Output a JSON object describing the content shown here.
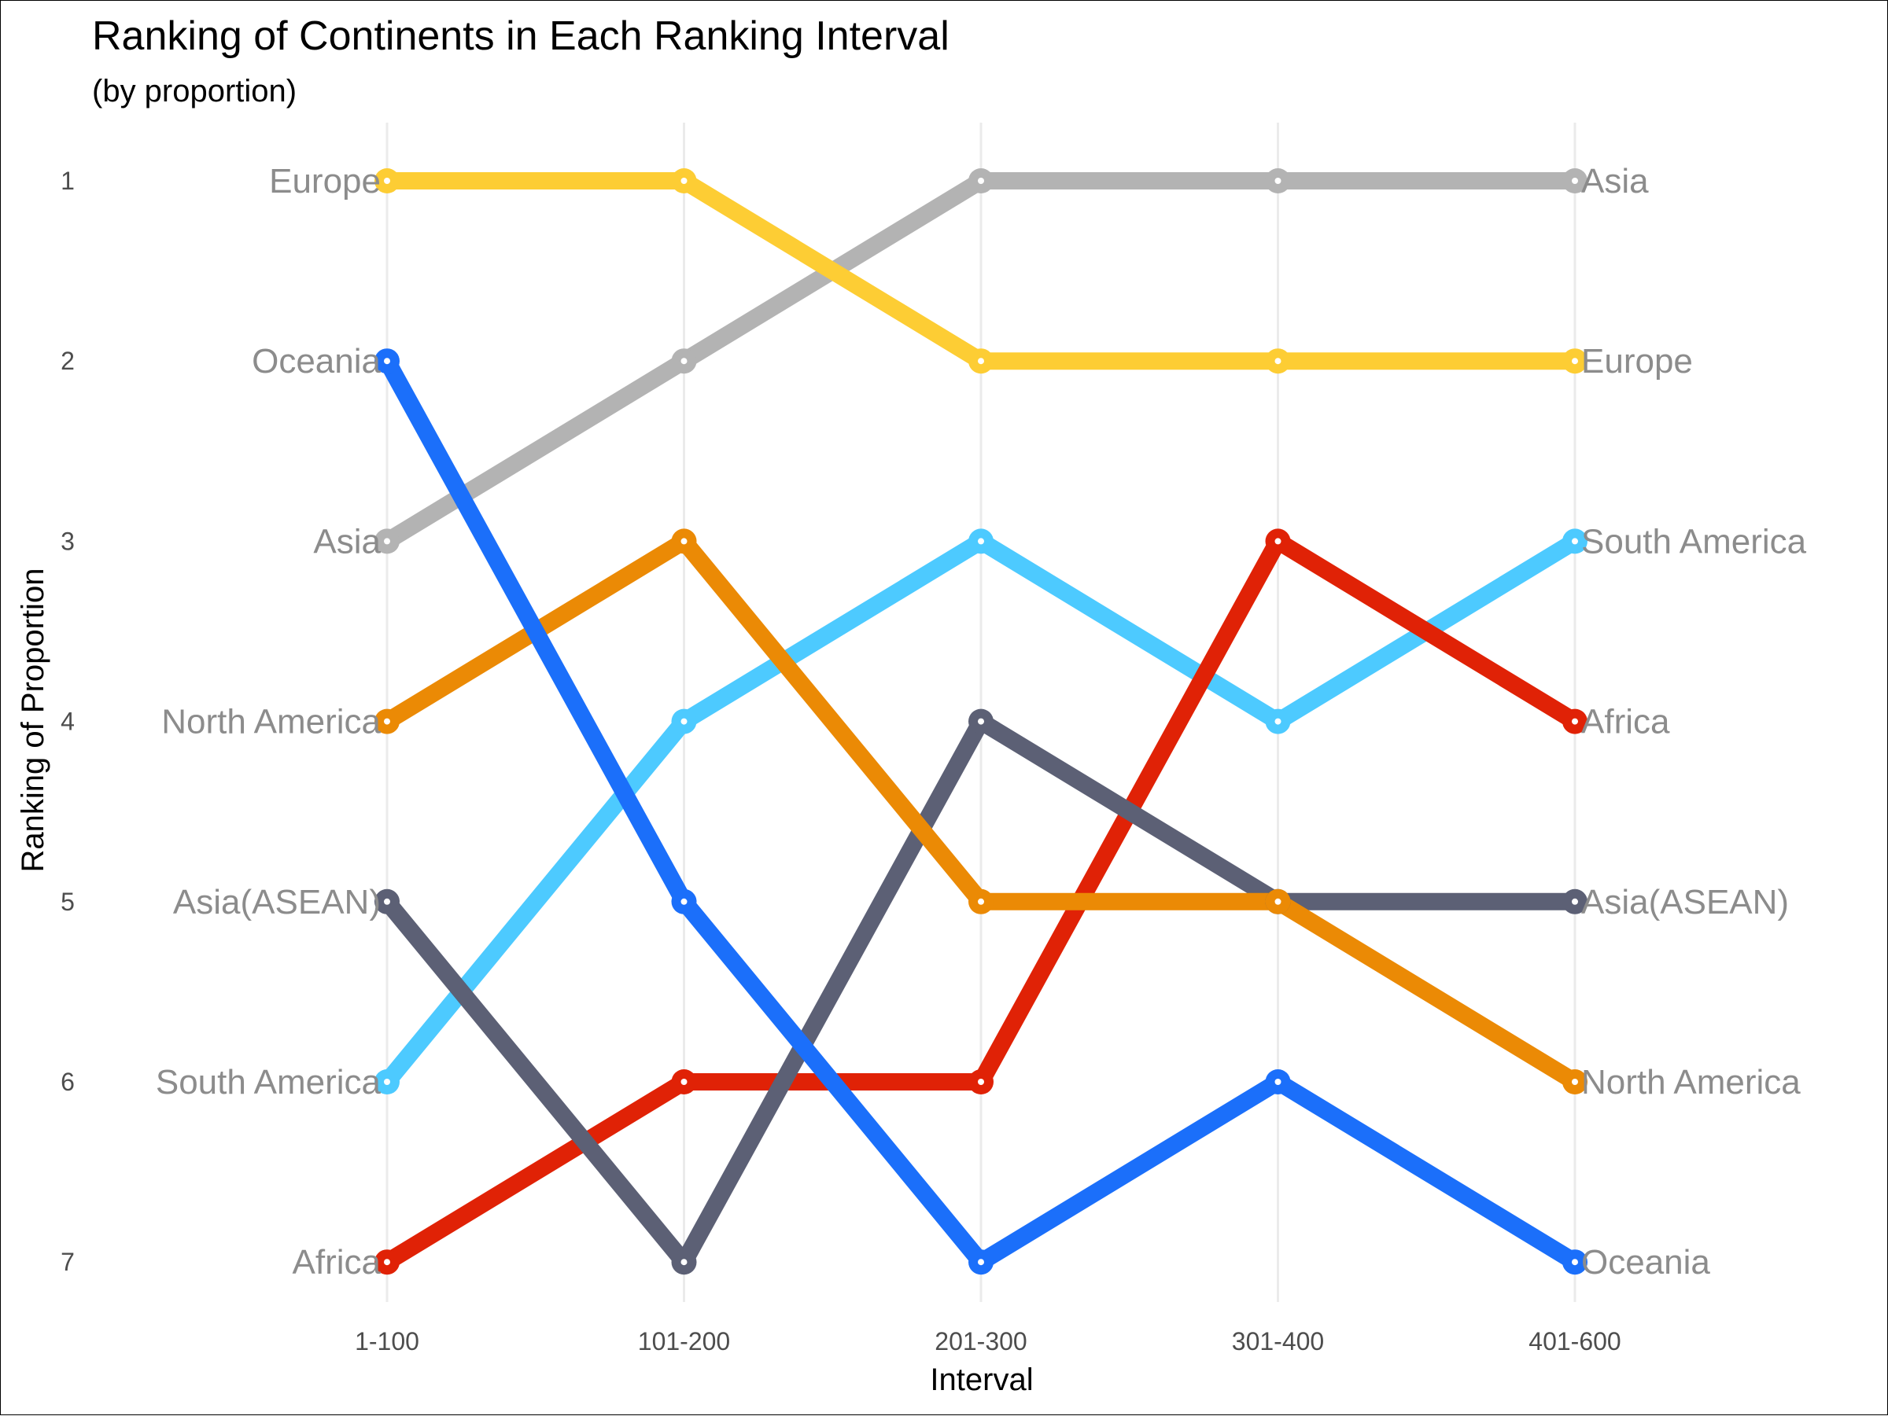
{
  "chart_data": {
    "type": "line",
    "title": "Ranking of Continents in Each Ranking Interval",
    "subtitle": "(by proportion)",
    "xlabel": "Interval",
    "ylabel": "Ranking of Proportion",
    "categories": [
      "1-100",
      "101-200",
      "201-300",
      "301-400",
      "401-600"
    ],
    "y_ticks": [
      "1",
      "2",
      "3",
      "4",
      "5",
      "6",
      "7"
    ],
    "ylim": [
      7,
      1
    ],
    "y_reversed": true,
    "grid": "vertical major lines only",
    "legend": "none (series labeled at both ends)",
    "label_color": "#8c8c8c",
    "series": [
      {
        "name": "Asia",
        "color": "#b3b3b3",
        "values": [
          3,
          2,
          1,
          1,
          1
        ]
      },
      {
        "name": "Europe",
        "color": "#fdcd34",
        "values": [
          1,
          1,
          2,
          2,
          2
        ]
      },
      {
        "name": "South America",
        "color": "#4dcaff",
        "values": [
          6,
          4,
          3,
          4,
          3
        ]
      },
      {
        "name": "Africa",
        "color": "#e02206",
        "values": [
          7,
          6,
          6,
          3,
          4
        ]
      },
      {
        "name": "Asia(ASEAN)",
        "color": "#5c6075",
        "values": [
          5,
          7,
          4,
          5,
          5
        ]
      },
      {
        "name": "North America",
        "color": "#eb8a05",
        "values": [
          4,
          3,
          5,
          5,
          6
        ]
      },
      {
        "name": "Oceania",
        "color": "#1b6ffa",
        "values": [
          2,
          5,
          7,
          6,
          7
        ]
      }
    ]
  }
}
